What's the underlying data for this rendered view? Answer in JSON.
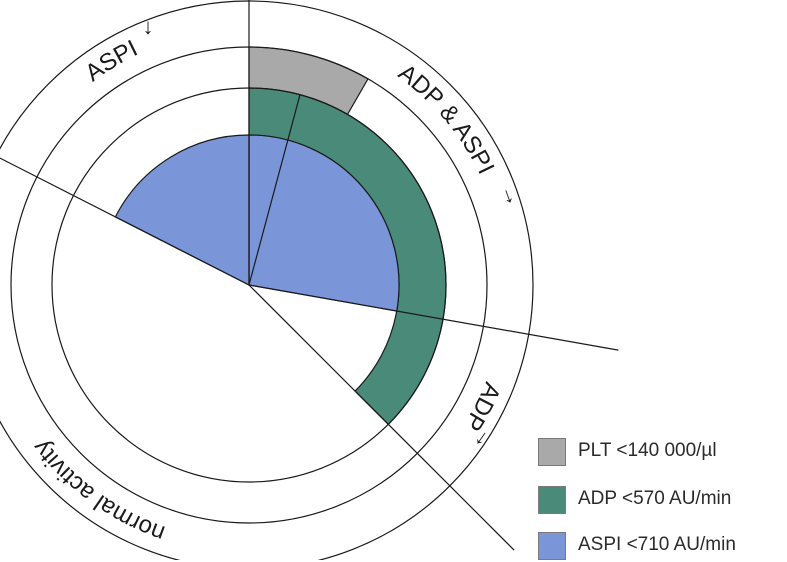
{
  "chart_data": {
    "type": "polar-area",
    "title": "",
    "sectors": [
      {
        "label": "ADP & ASPI",
        "start_deg": 0,
        "end_deg": 100
      },
      {
        "label": "ADP",
        "start_deg": 100,
        "end_deg": 135
      },
      {
        "label": "normal activity",
        "start_deg": 135,
        "end_deg": 297
      },
      {
        "label": "ASPI",
        "start_deg": 297,
        "end_deg": 360
      }
    ],
    "rings": [
      {
        "name": "ASPI <710 AU/min",
        "color": "#7b96d8",
        "spans_deg": [
          [
            0,
            100
          ],
          [
            297,
            360
          ]
        ]
      },
      {
        "name": "ADP <570 AU/min",
        "color": "#4a8a78",
        "spans_deg": [
          [
            0,
            135
          ]
        ]
      },
      {
        "name": "PLT <140 000/µl",
        "color": "#a9a9a9",
        "spans_deg": [
          [
            0,
            30
          ]
        ]
      }
    ],
    "legend": [
      {
        "label": "PLT <140 000/µl",
        "color": "#a9a9a9"
      },
      {
        "label": "ADP <570 AU/min",
        "color": "#4a8a78"
      },
      {
        "label": "ASPI <710 AU/min",
        "color": "#7b96d8"
      }
    ],
    "arrows": [
      {
        "label": "ASPI",
        "glyph": "↓"
      },
      {
        "label": "ADP & ASPI",
        "glyph": "↓"
      },
      {
        "label": "ADP",
        "glyph": "↓"
      }
    ],
    "legend_position": "bottom-right"
  }
}
